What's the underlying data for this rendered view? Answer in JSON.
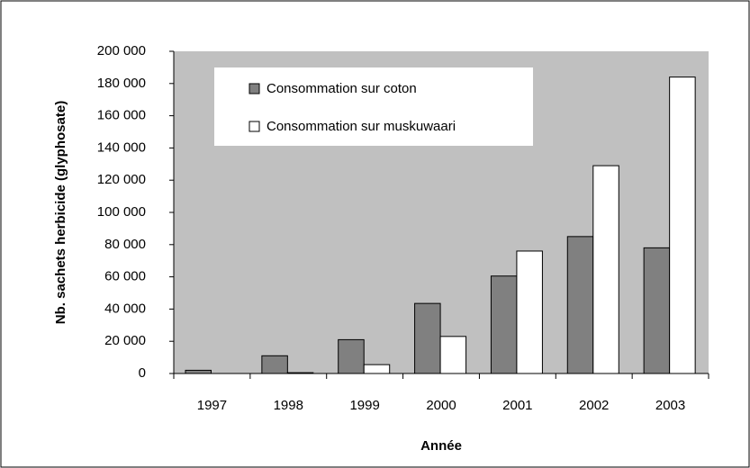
{
  "chart_data": {
    "type": "bar",
    "ylabel": "Nb. sachets herbicide (glyphosate)",
    "xlabel": "Année",
    "categories": [
      "1997",
      "1998",
      "1999",
      "2000",
      "2001",
      "2002",
      "2003"
    ],
    "series": [
      {
        "name": "Consommation sur coton",
        "color": "#808080",
        "values": [
          2000,
          11000,
          21000,
          43500,
          60500,
          85000,
          78000
        ]
      },
      {
        "name": "Consommation sur muskuwaari",
        "color": "#ffffff",
        "values": [
          0,
          500,
          5500,
          23000,
          76000,
          129000,
          184000
        ]
      }
    ],
    "ylim": [
      0,
      200000
    ],
    "yticks": [
      0,
      {
        "value": 20000,
        "label": "20 000"
      },
      {
        "value": 40000,
        "label": "40 000"
      },
      {
        "value": 60000,
        "label": "60 000"
      },
      {
        "value": 80000,
        "label": "80 000"
      },
      {
        "value": 100000,
        "label": "100 000"
      },
      {
        "value": 120000,
        "label": "120 000"
      },
      {
        "value": 140000,
        "label": "140 000"
      },
      {
        "value": 160000,
        "label": "160 000"
      },
      {
        "value": 180000,
        "label": "180 000"
      },
      {
        "value": 200000,
        "label": "200 000"
      }
    ],
    "plot_background": "#c0c0c0",
    "legend": "top-left"
  }
}
